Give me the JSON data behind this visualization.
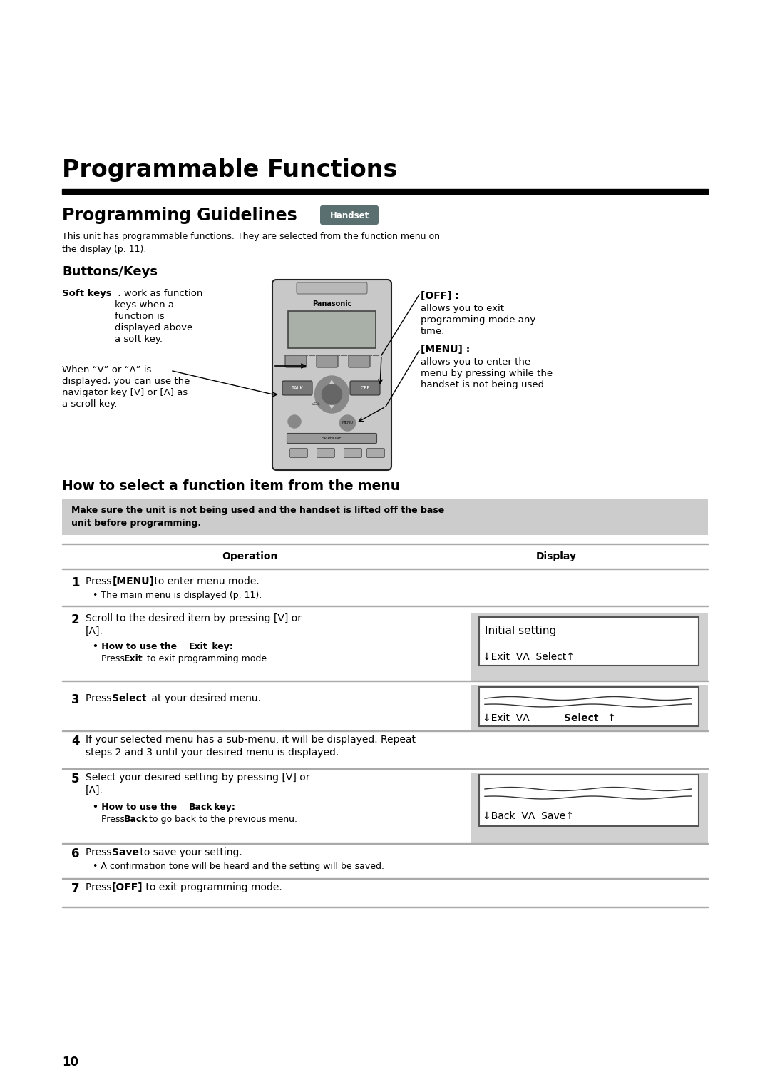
{
  "bg_color": "#ffffff",
  "page_num": "10",
  "main_title": "Programmable Functions",
  "section_title": "Programming Guidelines",
  "handset_badge": "Handset",
  "intro_text": "This unit has programmable functions. They are selected from the function menu on\nthe display (p. 11).",
  "buttons_keys_title": "Buttons/Keys",
  "soft_keys_bold": "Soft keys",
  "soft_keys_rest": " : work as function",
  "soft_keys_line2": "keys when a",
  "soft_keys_line3": "function is",
  "soft_keys_line4": "displayed above",
  "soft_keys_line5": "a soft key.",
  "when_text_line1": "When “V” or “Λ” is",
  "when_text_line2": "displayed, you can use the",
  "when_text_line3": "navigator key [V] or [Λ] as",
  "when_text_line4": "a scroll key.",
  "off_label": "[OFF] :",
  "off_text_line1": "allows you to exit",
  "off_text_line2": "programming mode any",
  "off_text_line3": "time.",
  "menu_label": "[MENU] :",
  "menu_text_line1": "allows you to enter the",
  "menu_text_line2": "menu by pressing while the",
  "menu_text_line3": "handset is not being used.",
  "how_to_title": "How to select a function item from the menu",
  "warning_line1": "Make sure the unit is not being used and the handset is lifted off the base",
  "warning_line2": "unit before programming.",
  "col_op": "Operation",
  "col_disp": "Display",
  "step1_num": "1",
  "step2_num": "2",
  "step3_num": "3",
  "step4_num": "4",
  "step5_num": "5",
  "step6_num": "6",
  "step7_num": "7",
  "teal_color": "#4a9090",
  "gray_bg": "#cccccc",
  "dark_gray": "#555555"
}
